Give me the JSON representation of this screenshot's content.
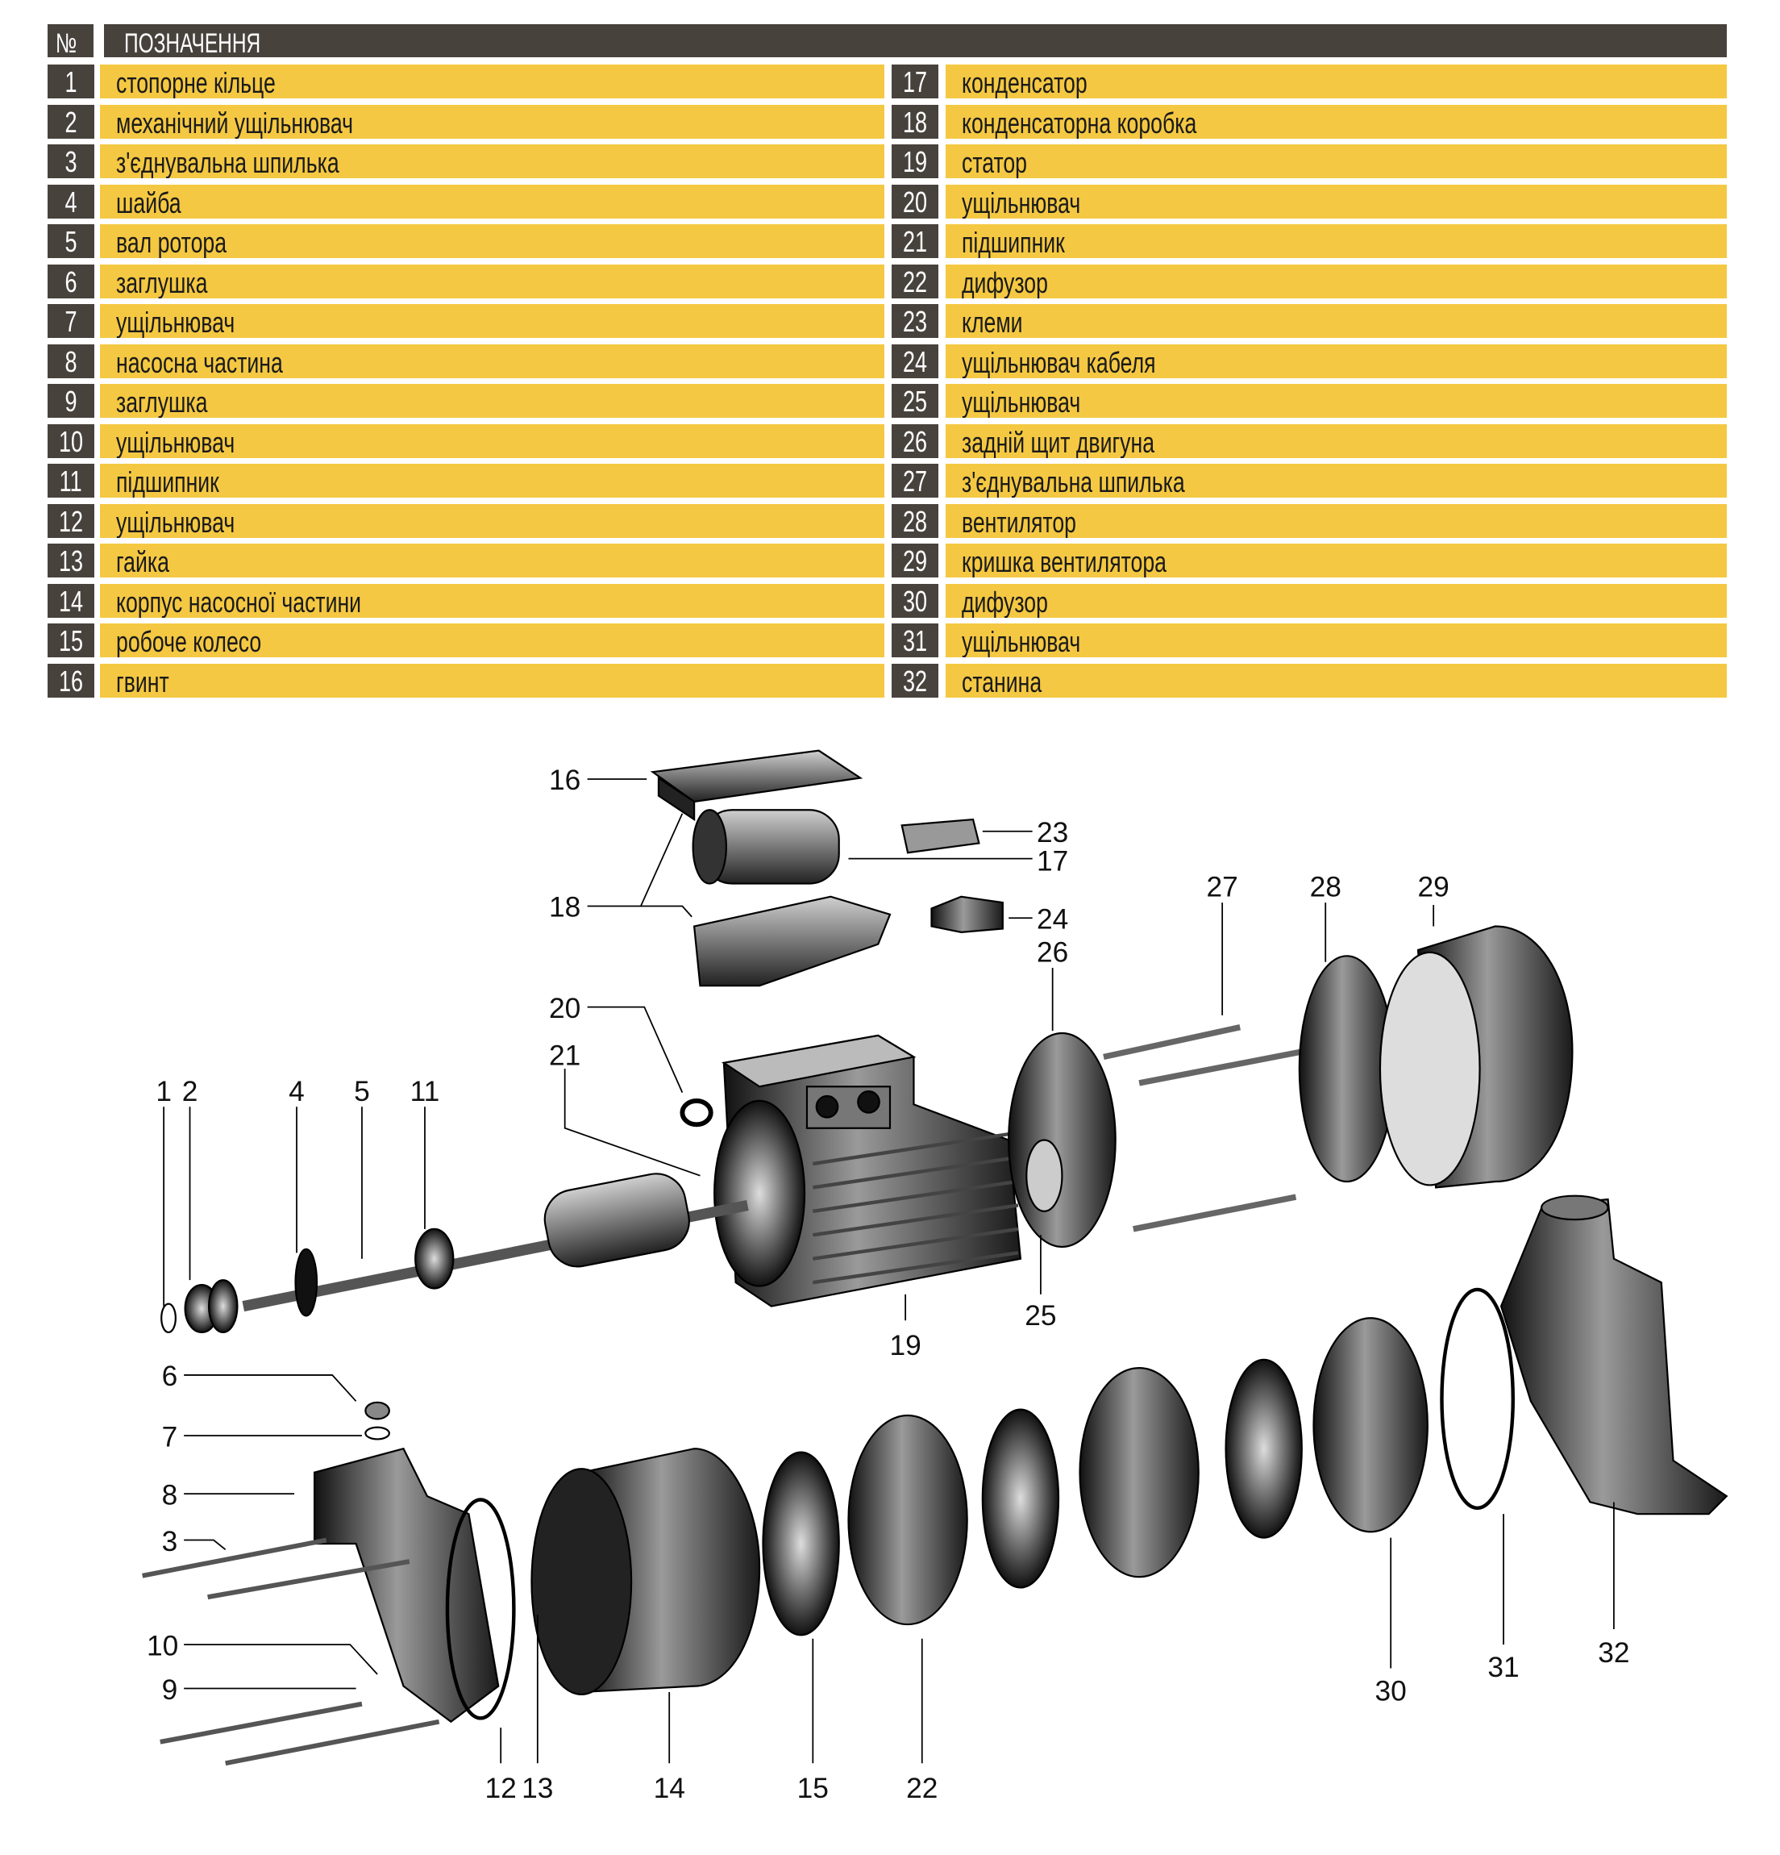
{
  "table": {
    "header_num": "№",
    "header_label": "ПОЗНАЧЕННЯ",
    "colors": {
      "dark": "#48423d",
      "accent": "#f4c842"
    },
    "left": [
      {
        "num": "1",
        "label": "стопорне кільце"
      },
      {
        "num": "2",
        "label": "механічний ущільнювач"
      },
      {
        "num": "3",
        "label": "з'єднувальна шпилька"
      },
      {
        "num": "4",
        "label": "шайба"
      },
      {
        "num": "5",
        "label": "вал ротора"
      },
      {
        "num": "6",
        "label": "заглушка"
      },
      {
        "num": "7",
        "label": "ущільнювач"
      },
      {
        "num": "8",
        "label": "насосна частина"
      },
      {
        "num": "9",
        "label": "заглушка"
      },
      {
        "num": "10",
        "label": "ущільнювач"
      },
      {
        "num": "11",
        "label": "підшипник"
      },
      {
        "num": "12",
        "label": "ущільнювач"
      },
      {
        "num": "13",
        "label": "гайка"
      },
      {
        "num": "14",
        "label": "корпус насосної частини"
      },
      {
        "num": "15",
        "label": "робоче колесо"
      },
      {
        "num": "16",
        "label": "гвинт"
      }
    ],
    "right": [
      {
        "num": "17",
        "label": "конденсатор"
      },
      {
        "num": "18",
        "label": "конденсаторна коробка"
      },
      {
        "num": "19",
        "label": "статор"
      },
      {
        "num": "20",
        "label": "ущільнювач"
      },
      {
        "num": "21",
        "label": "підшипник"
      },
      {
        "num": "22",
        "label": "дифузор"
      },
      {
        "num": "23",
        "label": "клеми"
      },
      {
        "num": "24",
        "label": "ущільнювач кабеля"
      },
      {
        "num": "25",
        "label": "ущільнювач"
      },
      {
        "num": "26",
        "label": "задній щит двигуна"
      },
      {
        "num": "27",
        "label": "з'єднувальна шпилька"
      },
      {
        "num": "28",
        "label": "вентилятор"
      },
      {
        "num": "29",
        "label": "кришка вентилятора"
      },
      {
        "num": "30",
        "label": "дифузор"
      },
      {
        "num": "31",
        "label": "ущільнювач"
      },
      {
        "num": "32",
        "label": "станина"
      }
    ]
  },
  "callouts": [
    "1",
    "2",
    "3",
    "4",
    "5",
    "6",
    "7",
    "8",
    "9",
    "10",
    "11",
    "12",
    "13",
    "14",
    "15",
    "16",
    "17",
    "18",
    "19",
    "20",
    "21",
    "22",
    "23",
    "24",
    "25",
    "26",
    "27",
    "28",
    "29",
    "30",
    "31",
    "32"
  ]
}
